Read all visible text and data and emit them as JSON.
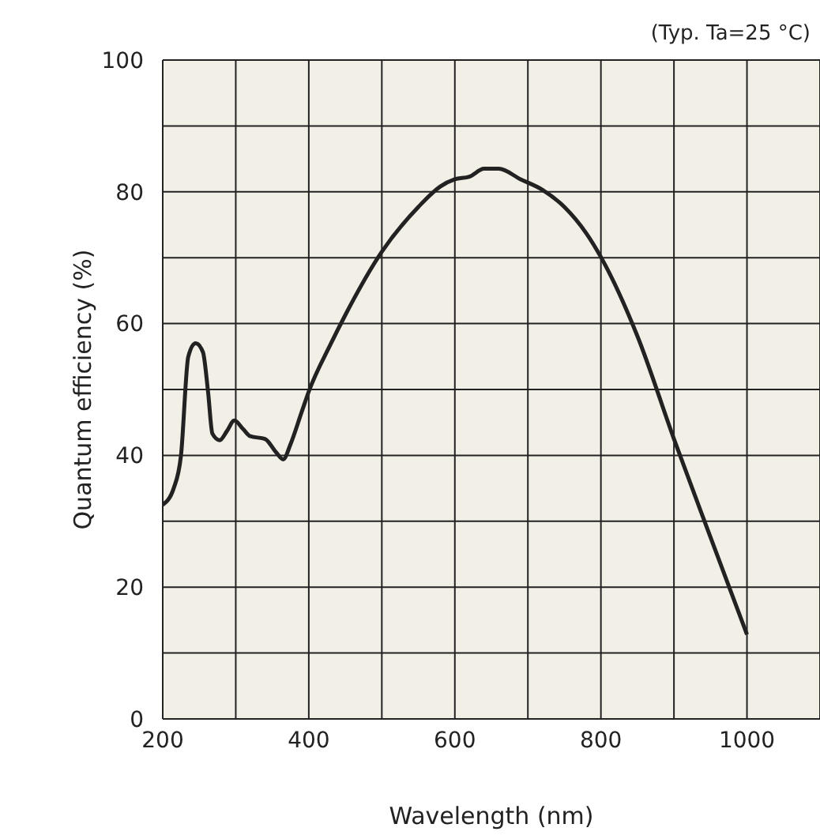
{
  "chart_data": {
    "type": "line",
    "xlabel": "Wavelength (nm)",
    "ylabel": "Quantum efficiency (%)",
    "annotations": [
      "(Typ. Ta=25 °C)"
    ],
    "xlim": [
      200,
      1100
    ],
    "xticks": [
      200,
      {
        "value": 300,
        "label": null
      },
      400,
      {
        "value": 500,
        "label": null
      },
      600,
      {
        "value": 700,
        "label": null
      },
      800,
      {
        "value": 900,
        "label": null
      },
      1000,
      {
        "value": 1100,
        "label": null
      }
    ],
    "ylim": [
      0,
      100
    ],
    "yticks": [
      0,
      {
        "value": 10,
        "label": null
      },
      20,
      {
        "value": 30,
        "label": null
      },
      40,
      {
        "value": 50,
        "label": null
      },
      60,
      {
        "value": 70,
        "label": null
      },
      80,
      {
        "value": 90,
        "label": null
      },
      100
    ],
    "grid": true,
    "marker": "none",
    "line_style": "solid",
    "series": [
      {
        "color": "#222222",
        "x": [
          200,
          215,
          225,
          235,
          245,
          255,
          262,
          268,
          278,
          288,
          298,
          310,
          320,
          340,
          355,
          365,
          375,
          390,
          400,
          430,
          450,
          500,
          550,
          580,
          600,
          620,
          640,
          660,
          690,
          720,
          750,
          780,
          800,
          850,
          900,
          950,
          1000
        ],
        "values": [
          32.5,
          35,
          40,
          55,
          57,
          55.7,
          49.7,
          43.3,
          42.3,
          43.7,
          45.3,
          44,
          42.9,
          42.5,
          40.5,
          39.4,
          41.7,
          46.5,
          49.7,
          56.9,
          61.3,
          70.9,
          77.7,
          80.8,
          81.9,
          82.3,
          83.5,
          83.5,
          81.9,
          80.3,
          77.7,
          73.7,
          70.1,
          58.1,
          42.5,
          27.6,
          12.8
        ]
      }
    ]
  }
}
